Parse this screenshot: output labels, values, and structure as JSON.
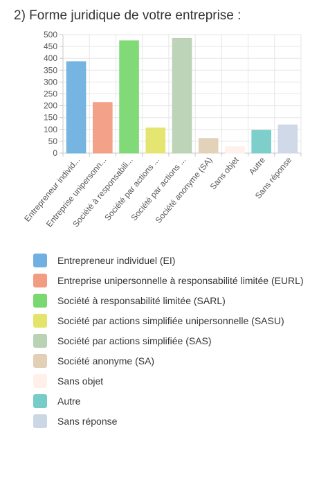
{
  "title": "2) Forme juridique de votre entreprise :",
  "chart_data": {
    "type": "bar",
    "ylim": [
      0,
      500
    ],
    "yticks": [
      0,
      50,
      100,
      150,
      200,
      250,
      300,
      350,
      400,
      450,
      500
    ],
    "grid": true,
    "categories": [
      "Entrepreneur individ...",
      "Entreprise unipersonn...",
      "Société à responsabili...",
      "Société par actions ...",
      "Société par actions ...",
      "Société anonyme (SA)",
      "Sans objet",
      "Autre",
      "Sans réponse"
    ],
    "values": [
      386,
      214,
      474,
      106,
      484,
      62,
      27,
      96,
      119
    ],
    "colors": [
      "#6fb0e0",
      "#f29c82",
      "#7ad870",
      "#e4e46a",
      "#b9d2b4",
      "#e2d0b6",
      "#fff0ea",
      "#77ccc8",
      "#ccd7e6"
    ],
    "legend_position": "bottom",
    "legend": [
      {
        "label": "Entrepreneur individuel (EI)",
        "color": "#6fb0e0"
      },
      {
        "label": "Entreprise unipersonnelle à responsabilité limitée (EURL)",
        "color": "#f29c82"
      },
      {
        "label": "Société à responsabilité limitée (SARL)",
        "color": "#7ad870"
      },
      {
        "label": "Société par actions simplifiée unipersonnelle (SASU)",
        "color": "#e4e46a"
      },
      {
        "label": "Société par actions simplifiée (SAS)",
        "color": "#b9d2b4"
      },
      {
        "label": "Société anonyme (SA)",
        "color": "#e2d0b6"
      },
      {
        "label": "Sans objet",
        "color": "#fff0ea"
      },
      {
        "label": "Autre",
        "color": "#77ccc8"
      },
      {
        "label": "Sans réponse",
        "color": "#ccd7e6"
      }
    ]
  }
}
